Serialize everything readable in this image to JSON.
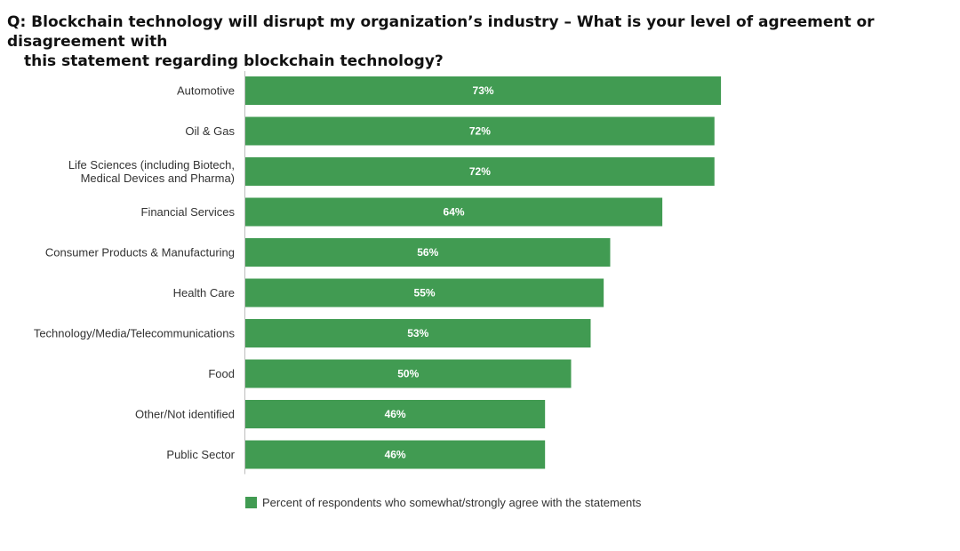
{
  "question": {
    "line1": "Q: Blockchain technology will disrupt my organization’s industry – What is your level of agreement or disagreement with",
    "line2": "this statement regarding blockchain technology?"
  },
  "colors": {
    "bar": "#419b52",
    "axis": "#bdbdbd"
  },
  "chart_data": {
    "type": "bar",
    "orientation": "horizontal",
    "title": "Q: Blockchain technology will disrupt my organization’s industry – What is your level of agreement or disagreement with this statement regarding blockchain technology?",
    "categories": [
      [
        "Automotive"
      ],
      [
        "Oil & Gas"
      ],
      [
        "Life Sciences (including Biotech,",
        "Medical Devices and Pharma)"
      ],
      [
        "Financial Services"
      ],
      [
        "Consumer Products & Manufacturing"
      ],
      [
        "Health Care"
      ],
      [
        "Technology/Media/Telecommunications"
      ],
      [
        "Food"
      ],
      [
        "Other/Not identified"
      ],
      [
        "Public Sector"
      ]
    ],
    "series": [
      {
        "name": "Percent of respondents who somewhat/strongly agree with the statements",
        "values": [
          73,
          72,
          72,
          64,
          56,
          55,
          53,
          50,
          46,
          46
        ]
      }
    ],
    "value_labels": [
      "73%",
      "72%",
      "72%",
      "64%",
      "56%",
      "55%",
      "53%",
      "50%",
      "46%",
      "46%"
    ],
    "xlim": [
      0,
      100
    ],
    "grid": false,
    "legend": "bottom-left"
  }
}
